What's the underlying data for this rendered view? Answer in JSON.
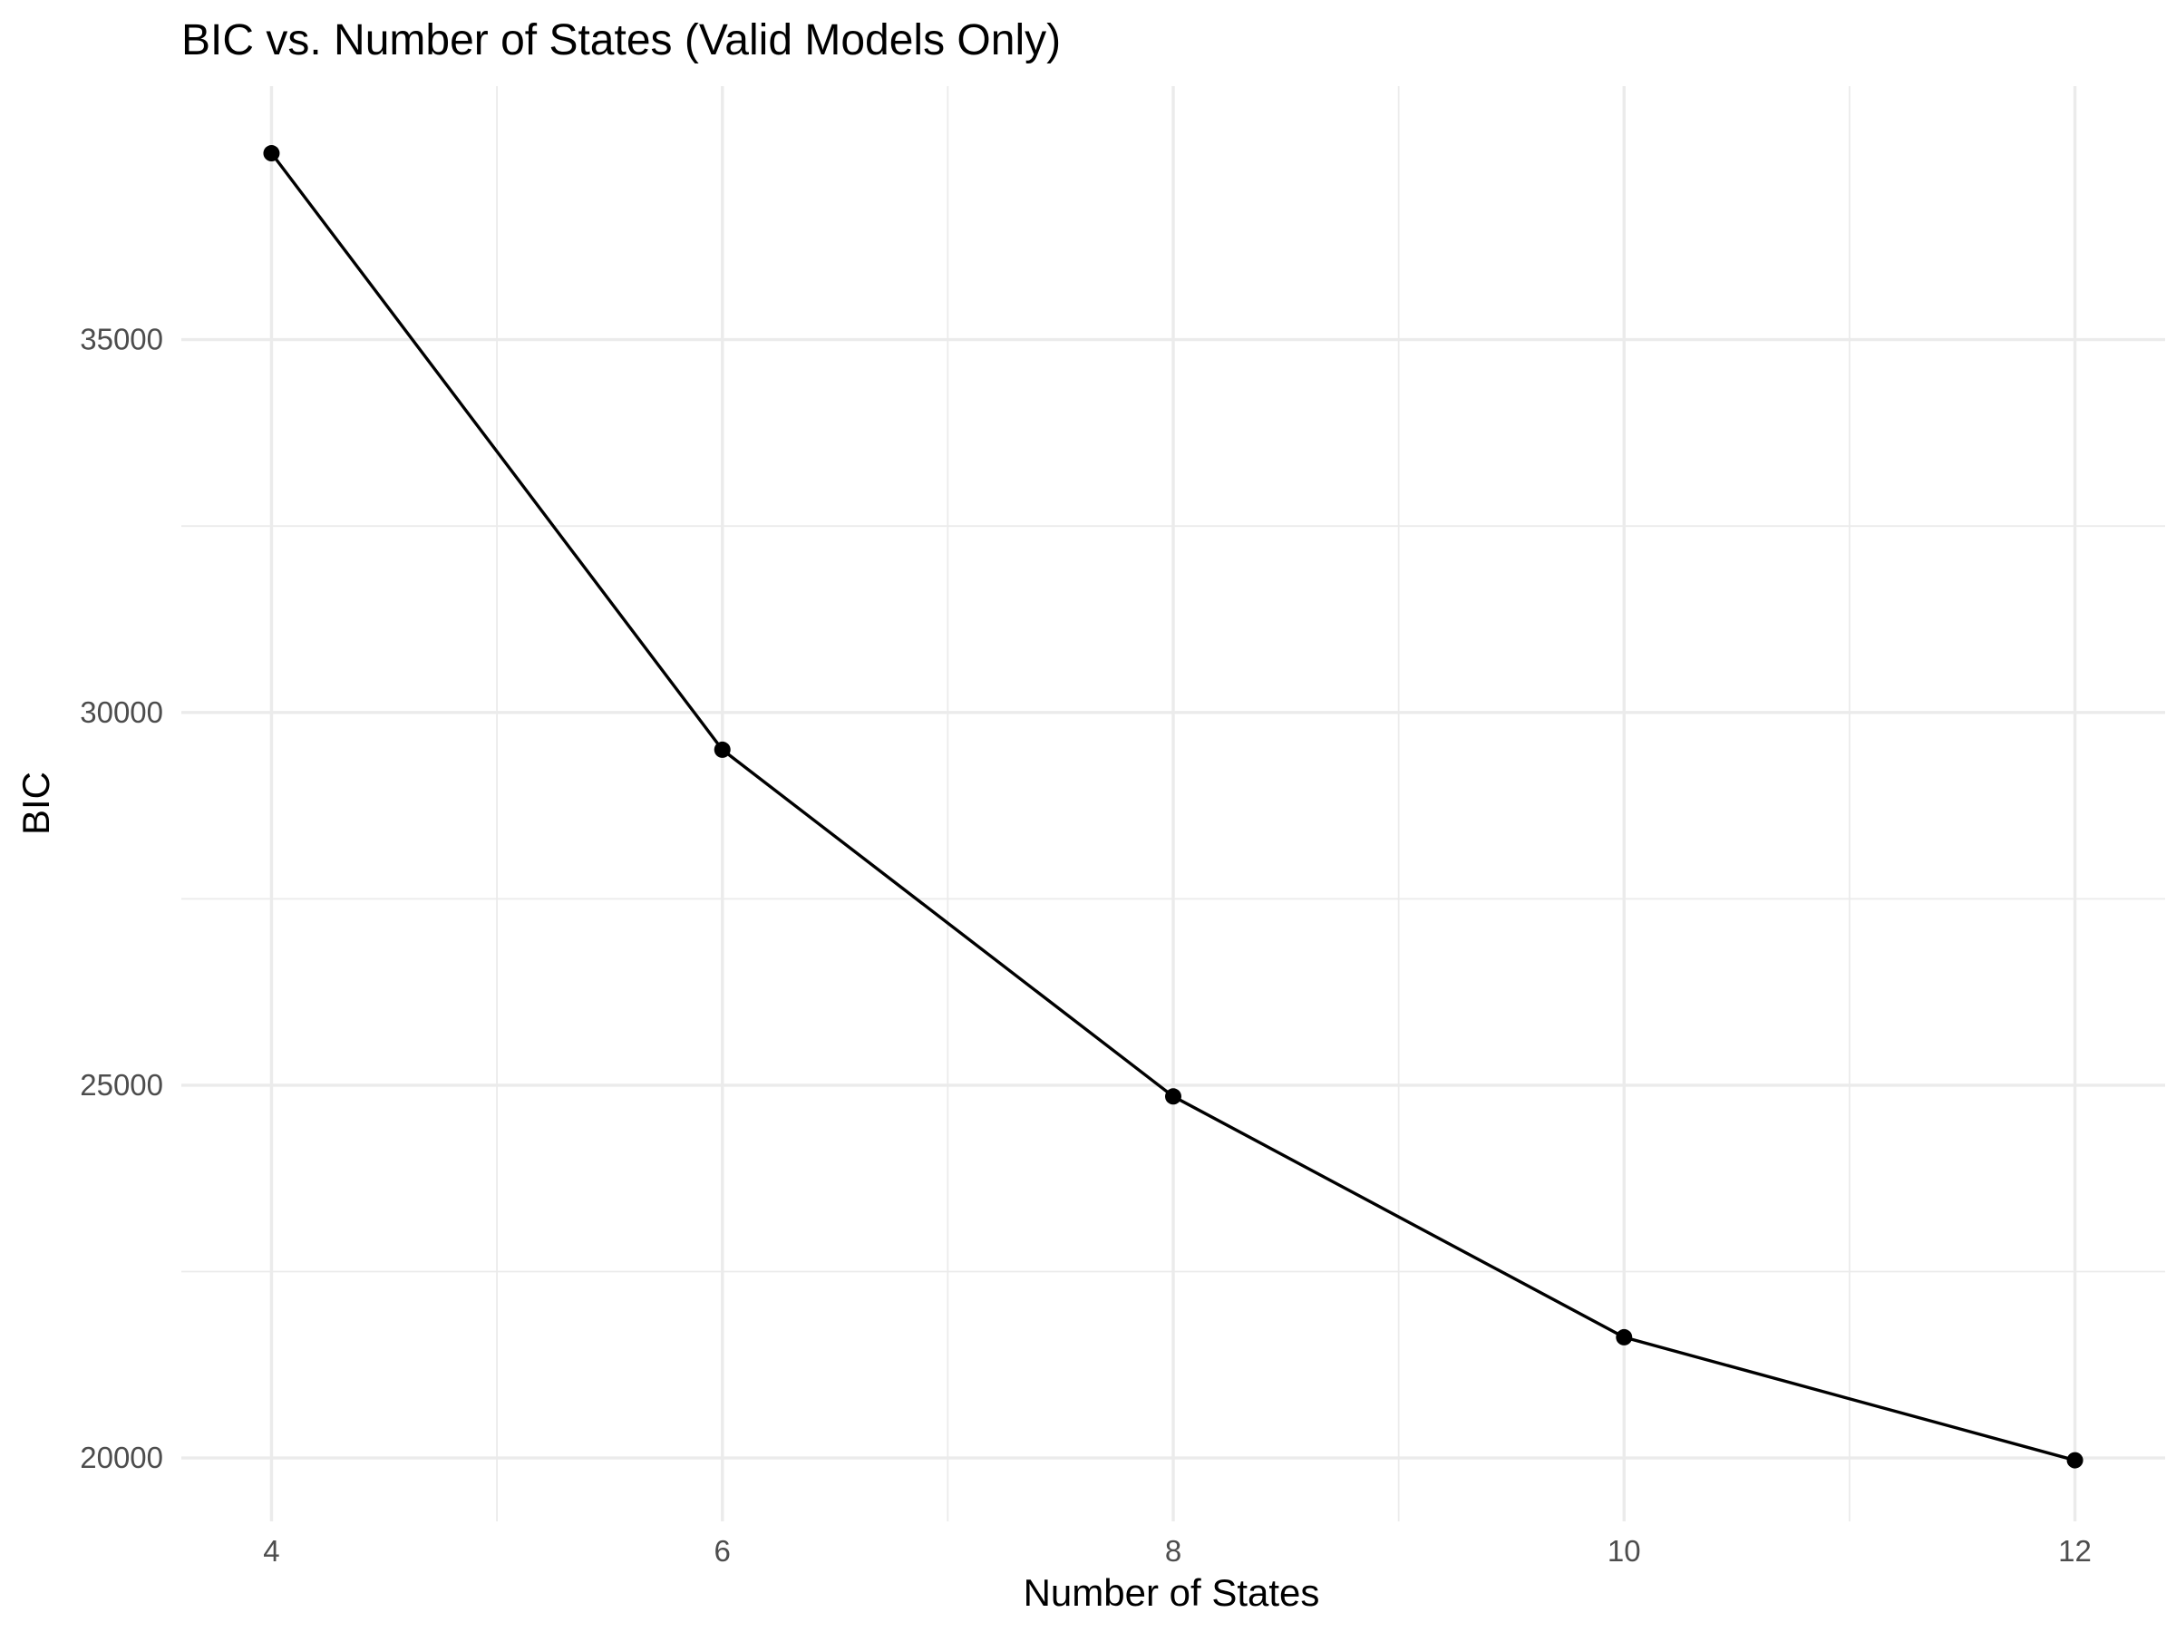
{
  "chart_data": {
    "type": "line",
    "title": "BIC vs. Number of States (Valid Models Only)",
    "xlabel": "Number of States",
    "ylabel": "BIC",
    "x": [
      4,
      6,
      8,
      10,
      12
    ],
    "series": [
      {
        "values": [
          37500,
          29500,
          24850,
          21620,
          19970
        ]
      }
    ],
    "xlim": [
      3.6,
      12.4
    ],
    "ylim": [
      19150,
      38400
    ],
    "x_ticks": [
      4,
      6,
      8,
      10,
      12
    ],
    "x_tick_labels": [
      "4",
      "6",
      "8",
      "10",
      "12"
    ],
    "x_minor_ticks": [
      5,
      7,
      9,
      11
    ],
    "y_ticks": [
      20000,
      25000,
      30000,
      35000
    ],
    "y_tick_labels": [
      "20000",
      "25000",
      "30000",
      "35000"
    ],
    "y_minor_ticks": [
      22500,
      27500,
      32500
    ],
    "grid": true,
    "legend": "none",
    "colors": {
      "line": "#000000",
      "grid": "#ebebeb",
      "tick_text": "#4d4d4d",
      "background": "#ffffff"
    }
  }
}
